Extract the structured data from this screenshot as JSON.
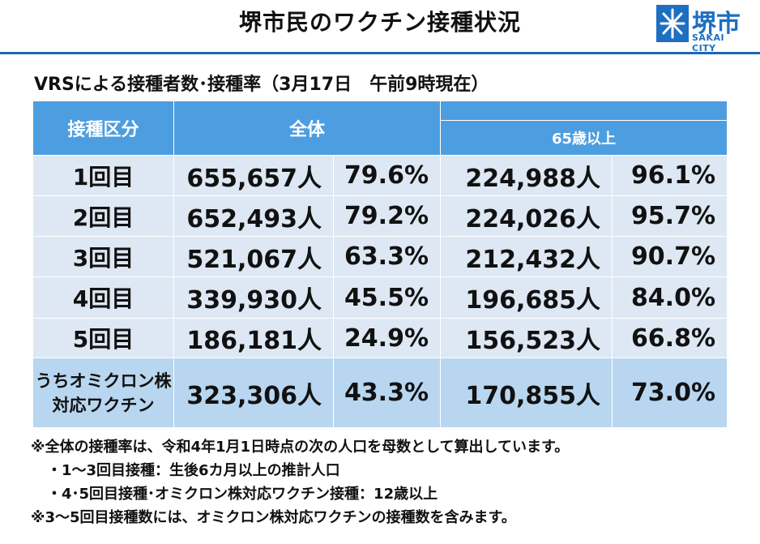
{
  "header": {
    "title": "堺市民のワクチン接種状況",
    "logo_name": "堺市",
    "logo_sub": "SAKAI CITY",
    "brand_color": "#1d6fc1"
  },
  "subtitle": "VRSによる接種者数･接種率（3月17日　午前9時現在）",
  "table": {
    "header": {
      "category": "接種区分",
      "overall": "全体",
      "age65": "65歳以上"
    },
    "rows": [
      {
        "label": "1回目",
        "all_count": "655,657人",
        "all_rate": "79.6%",
        "age65_count": "224,988人",
        "age65_rate": "96.1%"
      },
      {
        "label": "2回目",
        "all_count": "652,493人",
        "all_rate": "79.2%",
        "age65_count": "224,026人",
        "age65_rate": "95.7%"
      },
      {
        "label": "3回目",
        "all_count": "521,067人",
        "all_rate": "63.3%",
        "age65_count": "212,432人",
        "age65_rate": "90.7%"
      },
      {
        "label": "4回目",
        "all_count": "339,930人",
        "all_rate": "45.5%",
        "age65_count": "196,685人",
        "age65_rate": "84.0%"
      },
      {
        "label": "5回目",
        "all_count": "186,181人",
        "all_rate": "24.9%",
        "age65_count": "156,523人",
        "age65_rate": "66.8%"
      }
    ],
    "omicron_row": {
      "label_line1": "うちオミクロン株",
      "label_line2": "対応ワクチン",
      "all_count": "323,306人",
      "all_rate": "43.3%",
      "age65_count": "170,855人",
      "age65_rate": "73.0%"
    },
    "colors": {
      "header_bg": "#4d9ee0",
      "row_bg": "#dde8f4",
      "highlight_bg": "#b8d6ef"
    }
  },
  "notes": [
    "※全体の接種率は、令和4年1月1日時点の次の人口を母数として算出しています。",
    "・1～3回目接種：生後6カ月以上の推計人口",
    "・4･5回目接種･オミクロン株対応ワクチン接種：12歳以上",
    "※3～5回目接種数には、オミクロン株対応ワクチンの接種数を含みます。"
  ]
}
